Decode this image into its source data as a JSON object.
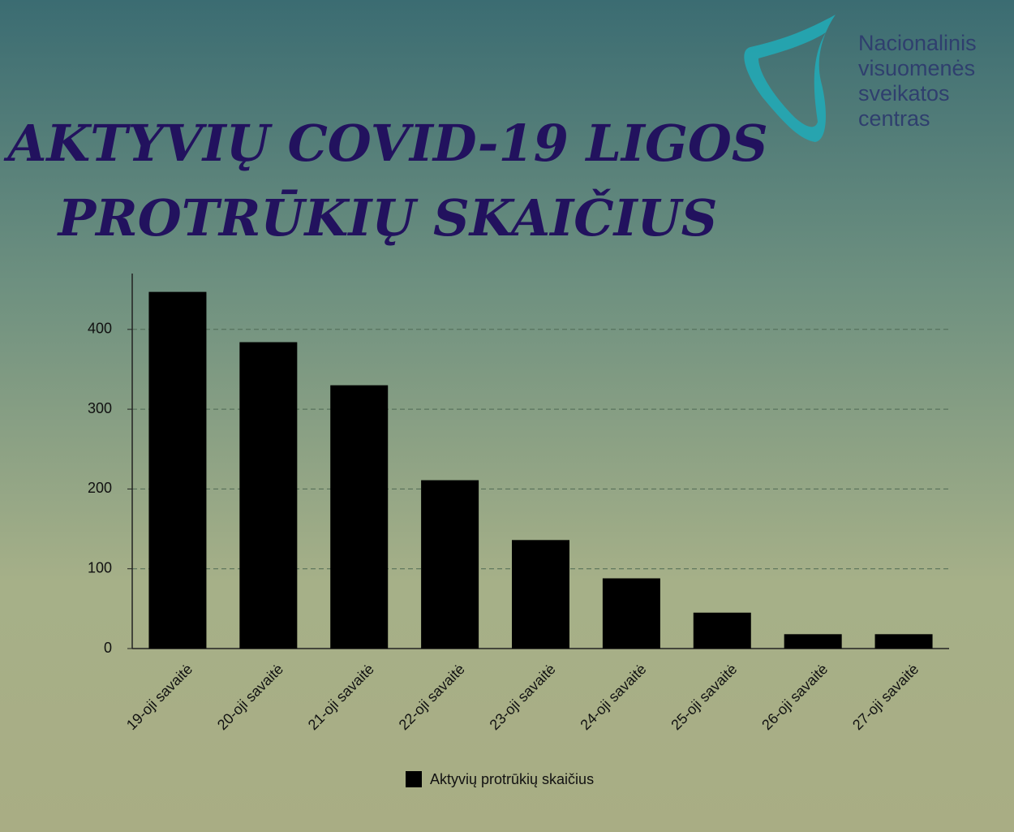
{
  "chart_data": {
    "type": "bar",
    "title": [
      "AKTYVIŲ COVID-19 LIGOS",
      "PROTRŪKIŲ SKAIČIUS"
    ],
    "categories": [
      "19-oji savaitė",
      "20-oji savaitė",
      "21-oji savaitė",
      "22-oji savaitė",
      "23-oji savaitė",
      "24-oji savaitė",
      "25-oji savaitė",
      "26-oji savaitė",
      "27-oji savaitė"
    ],
    "series": [
      {
        "name": "Aktyvių protrūkių skaičius",
        "color": "#000000",
        "values": [
          447,
          384,
          330,
          211,
          136,
          88,
          45,
          18,
          18
        ]
      }
    ],
    "ylim": [
      0,
      470
    ],
    "yticks": [
      0,
      100,
      200,
      300,
      400
    ],
    "grid": true,
    "legend": "bottom"
  },
  "logo": {
    "lines": [
      "Nacionalinis",
      "visuomenės",
      "sveikatos",
      "centras"
    ]
  }
}
